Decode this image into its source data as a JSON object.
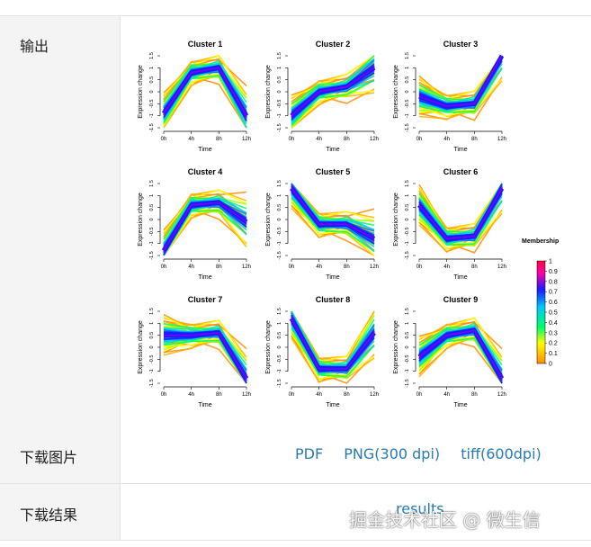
{
  "rows": {
    "output_label": "输出",
    "download_image_label": "下载图片",
    "download_results_label": "下载结果"
  },
  "download_links": [
    "PDF",
    "PNG(300 dpi)",
    "tiff(600dpi)"
  ],
  "results_link": "results",
  "watermark": "掘金技术社区 @ 微生信",
  "chart_data": {
    "type": "line",
    "x": [
      "0h",
      "4h",
      "8h",
      "12h"
    ],
    "xlabel": "Time",
    "ylabel": "Expression change",
    "ylim": [
      -1.5,
      1.5
    ],
    "yticks": [
      "-1.5",
      "-1",
      "-0.5",
      "0",
      "0.5",
      "1",
      "1.5"
    ],
    "panels": [
      {
        "title": "Cluster 1",
        "core": [
          -0.9,
          0.8,
          1.0,
          -1.0
        ]
      },
      {
        "title": "Cluster 2",
        "core": [
          -1.0,
          0.0,
          0.2,
          1.0
        ]
      },
      {
        "title": "Cluster 3",
        "core": [
          -0.2,
          -0.6,
          -0.5,
          1.5
        ]
      },
      {
        "title": "Cluster 4",
        "core": [
          -1.3,
          0.6,
          0.7,
          -0.1
        ]
      },
      {
        "title": "Cluster 5",
        "core": [
          1.3,
          -0.2,
          -0.2,
          -0.8
        ]
      },
      {
        "title": "Cluster 6",
        "core": [
          0.6,
          -0.8,
          -0.7,
          1.3
        ]
      },
      {
        "title": "Cluster 7",
        "core": [
          0.5,
          0.5,
          0.6,
          -1.3
        ]
      },
      {
        "title": "Cluster 8",
        "core": [
          1.2,
          -0.9,
          -0.9,
          0.6
        ]
      },
      {
        "title": "Cluster 9",
        "core": [
          -0.4,
          0.5,
          0.7,
          -1.3
        ]
      }
    ],
    "legend": {
      "title": "Membership",
      "ticks": [
        "1",
        "0.9",
        "0.8",
        "0.7",
        "0.6",
        "0.5",
        "0.4",
        "0.3",
        "0.2",
        "0.1",
        "0"
      ]
    },
    "colors": {
      "low": "#ff8c00",
      "mid_low": "#ffff00",
      "mid": "#00ff66",
      "mid_high": "#00c8ff",
      "high": "#1a1aff",
      "top": "#ff00aa",
      "max": "#ff0040"
    }
  }
}
